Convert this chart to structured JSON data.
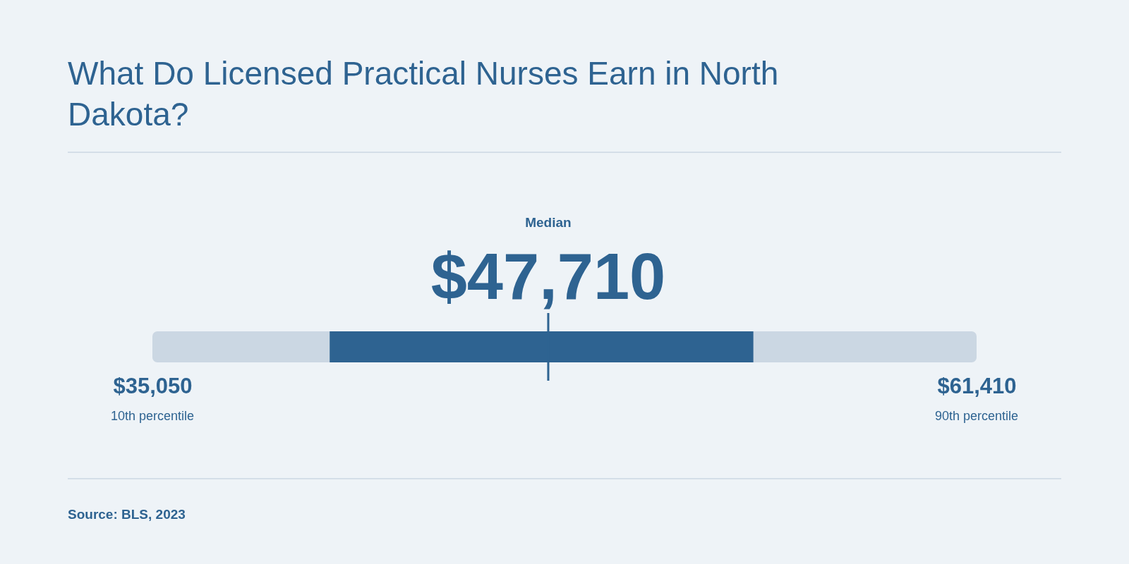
{
  "chart_data": {
    "type": "bar",
    "orientation": "horizontal",
    "title": "What Do Licensed Practical Nurses Earn in North Dakota?",
    "categories": [
      null
    ],
    "series": [
      {
        "color": "#2e6391",
        "values": [
          13550
        ],
        "base": [
          40720
        ]
      }
    ],
    "bands": [
      {
        "axis": "x",
        "from": 35050,
        "to": 61410,
        "color": "#cbd7e3"
      }
    ],
    "ref_lines": [
      {
        "axis": "x",
        "value": 47710,
        "label": "Median",
        "color": "#2e6391"
      }
    ],
    "xlim": [
      35050,
      61410
    ],
    "xticks": [
      {
        "value": 35050,
        "label": "$35,050"
      },
      {
        "value": 61410,
        "label": "$61,410"
      }
    ],
    "annotations": [
      "$47,710",
      "10th percentile",
      "90th percentile",
      "Source: BLS, 2023"
    ]
  }
}
